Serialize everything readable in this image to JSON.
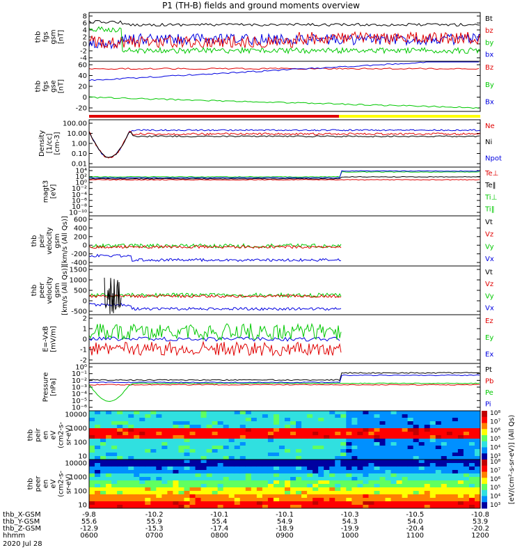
{
  "title": "P1 (TH-B) fields and ground moments overview",
  "colors": {
    "black": "#000000",
    "red": "#e00000",
    "green": "#00c800",
    "blue": "#0000e0",
    "yellow": "#ffff00"
  },
  "chart_data": {
    "type": "line",
    "panels": [
      {
        "id": "fgs-gsm",
        "ylabel": [
          "thb",
          "fgs",
          "gsm",
          "[nT]"
        ],
        "yticks": [
          "8",
          "6",
          "4",
          "2",
          "0",
          "-2",
          "-4"
        ],
        "ylim": [
          -4,
          8
        ],
        "legend": [
          {
            "label": "Bt",
            "color": "black"
          },
          {
            "label": "bz",
            "color": "red"
          },
          {
            "label": "by",
            "color": "green"
          },
          {
            "label": "bx",
            "color": "blue"
          }
        ]
      },
      {
        "id": "fgs-gse",
        "ylabel": [
          "thb",
          "fgs",
          "gse",
          "[nT]"
        ],
        "yticks": [
          "60",
          "40",
          "20",
          "0",
          "-20"
        ],
        "ylim": [
          -30,
          60
        ],
        "legend": [
          {
            "label": "Bz",
            "color": "red"
          },
          {
            "label": "By",
            "color": "green"
          },
          {
            "label": "Bx",
            "color": "blue"
          }
        ]
      },
      {
        "id": "density",
        "ylabel": [
          "Density",
          "[1/cc]",
          "[cm-3]"
        ],
        "yticks": [
          "100.00",
          "10.00",
          "1.00",
          "0.10",
          "0.01"
        ],
        "ylim": [
          0.005,
          150
        ],
        "log": true,
        "legend": [
          {
            "label": "Ne",
            "color": "red"
          },
          {
            "label": "Ni",
            "color": "black"
          },
          {
            "label": "Npot",
            "color": "blue"
          }
        ]
      },
      {
        "id": "temperature",
        "ylabel": [
          "magt3",
          "[eV]"
        ],
        "yticks": [
          "10⁴",
          "10²",
          "10⁰",
          "10⁻²",
          "10⁻⁴",
          "10⁻⁶",
          "10⁻⁸",
          "10⁻¹⁰"
        ],
        "ylim": [
          1e-10,
          10000.0
        ],
        "log": true,
        "legend": [
          {
            "label": "Te⊥",
            "color": "red"
          },
          {
            "label": "Te‖",
            "color": "black"
          },
          {
            "label": "Ti⊥",
            "color": "green"
          },
          {
            "label": "Ti‖",
            "color": "green"
          }
        ]
      },
      {
        "id": "peir-velocity",
        "ylabel": [
          "thb",
          "peir",
          "velocity",
          "gsm",
          "[km/s (All Qs)]"
        ],
        "yticks": [
          "600",
          "400",
          "200",
          "0",
          "-200",
          "-400"
        ],
        "ylim": [
          -400,
          600
        ],
        "legend": [
          {
            "label": "Vt",
            "color": "black"
          },
          {
            "label": "Vz",
            "color": "red"
          },
          {
            "label": "Vy",
            "color": "green"
          },
          {
            "label": "Vx",
            "color": "blue"
          }
        ]
      },
      {
        "id": "peer-velocity",
        "ylabel": [
          "thb",
          "peer",
          "velocity",
          "gsm",
          "[km/s (All Qs)]"
        ],
        "yticks": [
          "1500",
          "1000",
          "500",
          "0",
          "-500"
        ],
        "ylim": [
          -500,
          1500
        ],
        "legend": [
          {
            "label": "Vt",
            "color": "black"
          },
          {
            "label": "Vz",
            "color": "red"
          },
          {
            "label": "Vy",
            "color": "green"
          },
          {
            "label": "Vx",
            "color": "blue"
          }
        ]
      },
      {
        "id": "efield",
        "ylabel": [
          "E=-VxB",
          "[mV/m]"
        ],
        "yticks": [
          "2",
          "1",
          "0",
          "-1",
          "-2"
        ],
        "ylim": [
          -2,
          2
        ],
        "legend": [
          {
            "label": "Ez",
            "color": "red"
          },
          {
            "label": "Ey",
            "color": "green"
          },
          {
            "label": "Ex",
            "color": "blue"
          }
        ]
      },
      {
        "id": "pressure",
        "ylabel": [
          "Pressure",
          "[nPa]"
        ],
        "yticks": [
          "10⁰",
          "10⁻¹",
          "10⁻²",
          "10⁻³",
          "10⁻⁴",
          "10⁻⁵",
          "10⁻⁶"
        ],
        "ylim": [
          1e-06,
          1
        ],
        "log": true,
        "legend": [
          {
            "label": "Pt",
            "color": "black"
          },
          {
            "label": "Pb",
            "color": "red"
          },
          {
            "label": "Pe",
            "color": "green"
          },
          {
            "label": "Pi",
            "color": "blue"
          }
        ]
      },
      {
        "id": "peir-spec",
        "ylabel": [
          "thb",
          "peir",
          "en",
          "eV",
          "(cm2-s-",
          "sr-eV)"
        ],
        "yticks": [
          "10000",
          "1000",
          "100",
          "10"
        ],
        "type": "heatmap"
      },
      {
        "id": "peer-spec",
        "ylabel": [
          "thb",
          "peer",
          "en",
          "eV",
          "(cm2-s-",
          "sr-eV)"
        ],
        "yticks": [
          "10000",
          "1000",
          "100",
          "10"
        ],
        "type": "heatmap"
      }
    ],
    "colorbars": [
      {
        "ticks": [
          "10⁸",
          "10⁷",
          "10⁶",
          "10⁵",
          "10⁴",
          "10³"
        ]
      },
      {
        "ticks": [
          "10⁸",
          "10⁷",
          "10⁶",
          "10⁵",
          "10⁴",
          "10³"
        ]
      }
    ],
    "colorbar_label": "[eV/(cm²-s-sr-eV)] (All Qs)",
    "xaxis": {
      "rows": [
        {
          "label": "thb_X-GSM",
          "values": [
            "-9.8",
            "-10.2",
            "-10.1",
            "-10.1",
            "-10.3",
            "-10.5",
            "-10.8"
          ]
        },
        {
          "label": "thb_Y-GSM",
          "values": [
            "55.6",
            "55.9",
            "55.4",
            "54.9",
            "54.3",
            "54.0",
            "53.9"
          ]
        },
        {
          "label": "thb_Z-GSM",
          "values": [
            "-12.9",
            "-15.3",
            "-17.4",
            "-18.9",
            "-19.9",
            "-20.4",
            "-20.2"
          ]
        },
        {
          "label": "hhmm",
          "values": [
            "0600",
            "0700",
            "0800",
            "0900",
            "1000",
            "1100",
            "1200"
          ]
        }
      ],
      "date": "2020 Jul 28"
    }
  }
}
